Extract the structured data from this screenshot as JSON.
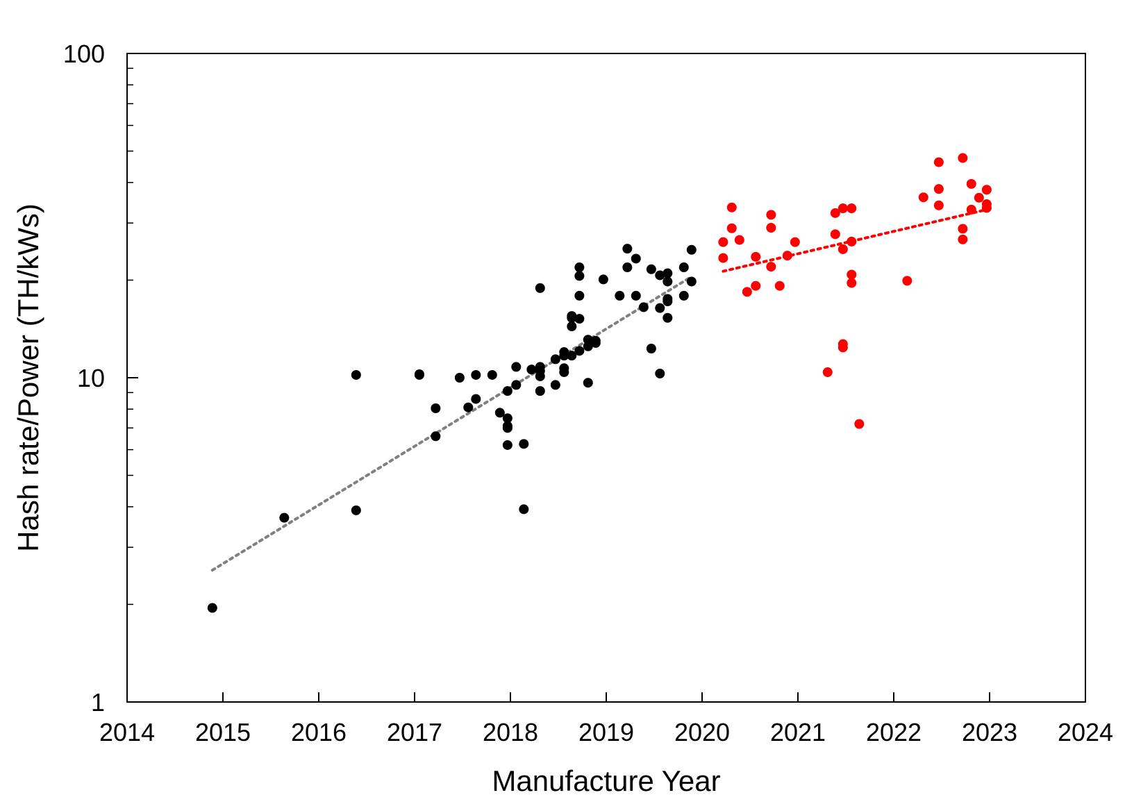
{
  "chart_data": {
    "type": "scatter",
    "xlabel": "Manufacture Year",
    "ylabel": "Hash rate/Power (TH/kWs)",
    "xlim": [
      2014,
      2024
    ],
    "ylim": [
      1,
      100
    ],
    "y_scale": "log",
    "x_ticks": [
      "2014",
      "2015",
      "2016",
      "2017",
      "2018",
      "2019",
      "2020",
      "2021",
      "2022",
      "2023",
      "2024"
    ],
    "y_ticks": [
      "1",
      "10",
      "100"
    ],
    "grid": false,
    "legend": false,
    "colors": {
      "series_pre2020": "#000000",
      "series_post2020": "#ff0000",
      "trend_pre2020": "#808080",
      "trend_post2020": "#ff0000"
    },
    "series": [
      {
        "color": "#000000",
        "points": [
          [
            2014.89,
            1.95
          ],
          [
            2015.64,
            3.7
          ],
          [
            2016.39,
            3.9
          ],
          [
            2016.39,
            10.2
          ],
          [
            2017.05,
            10.25
          ],
          [
            2017.05,
            10.2
          ],
          [
            2017.22,
            8.05
          ],
          [
            2017.22,
            6.6
          ],
          [
            2017.47,
            10.0
          ],
          [
            2017.56,
            8.1
          ],
          [
            2017.64,
            8.6
          ],
          [
            2017.64,
            10.2
          ],
          [
            2017.81,
            10.2
          ],
          [
            2017.89,
            7.8
          ],
          [
            2017.97,
            7.5
          ],
          [
            2017.97,
            7.0
          ],
          [
            2017.97,
            7.1
          ],
          [
            2017.97,
            6.2
          ],
          [
            2017.97,
            9.1
          ],
          [
            2018.06,
            9.5
          ],
          [
            2018.06,
            10.8
          ],
          [
            2018.14,
            3.93
          ],
          [
            2018.14,
            6.25
          ],
          [
            2018.22,
            10.6
          ],
          [
            2018.31,
            9.1
          ],
          [
            2018.31,
            10.1
          ],
          [
            2018.31,
            10.5
          ],
          [
            2018.31,
            10.8
          ],
          [
            2018.31,
            18.9
          ],
          [
            2018.47,
            9.5
          ],
          [
            2018.47,
            11.4
          ],
          [
            2018.56,
            10.4
          ],
          [
            2018.56,
            10.7
          ],
          [
            2018.56,
            11.7
          ],
          [
            2018.56,
            12.0
          ],
          [
            2018.64,
            11.7
          ],
          [
            2018.64,
            14.4
          ],
          [
            2018.64,
            15.3
          ],
          [
            2018.64,
            15.5
          ],
          [
            2018.72,
            12.1
          ],
          [
            2018.72,
            15.2
          ],
          [
            2018.72,
            17.9
          ],
          [
            2018.72,
            20.6
          ],
          [
            2018.72,
            21.9
          ],
          [
            2018.81,
            9.65
          ],
          [
            2018.81,
            12.5
          ],
          [
            2018.81,
            13.1
          ],
          [
            2018.89,
            12.8
          ],
          [
            2018.89,
            13.0
          ],
          [
            2018.97,
            20.1
          ],
          [
            2019.14,
            17.9
          ],
          [
            2019.22,
            21.9
          ],
          [
            2019.22,
            25.0
          ],
          [
            2019.31,
            17.9
          ],
          [
            2019.31,
            23.3
          ],
          [
            2019.39,
            16.5
          ],
          [
            2019.47,
            12.3
          ],
          [
            2019.47,
            21.6
          ],
          [
            2019.56,
            10.3
          ],
          [
            2019.56,
            16.4
          ],
          [
            2019.56,
            20.7
          ],
          [
            2019.64,
            15.3
          ],
          [
            2019.64,
            17.2
          ],
          [
            2019.64,
            17.5
          ],
          [
            2019.64,
            19.8
          ],
          [
            2019.64,
            21.0
          ],
          [
            2019.81,
            17.9
          ],
          [
            2019.81,
            21.9
          ],
          [
            2019.89,
            19.8
          ],
          [
            2019.89,
            24.8
          ]
        ]
      },
      {
        "color": "#ff0000",
        "points": [
          [
            2020.22,
            26.2
          ],
          [
            2020.22,
            23.4
          ],
          [
            2020.31,
            33.5
          ],
          [
            2020.31,
            28.9
          ],
          [
            2020.39,
            26.6
          ],
          [
            2020.47,
            18.4
          ],
          [
            2020.56,
            19.2
          ],
          [
            2020.56,
            23.6
          ],
          [
            2020.72,
            31.8
          ],
          [
            2020.72,
            29.0
          ],
          [
            2020.72,
            22.0
          ],
          [
            2020.81,
            19.2
          ],
          [
            2020.89,
            23.8
          ],
          [
            2020.97,
            26.2
          ],
          [
            2021.31,
            10.4
          ],
          [
            2021.39,
            32.2
          ],
          [
            2021.39,
            27.7
          ],
          [
            2021.47,
            33.3
          ],
          [
            2021.47,
            24.9
          ],
          [
            2021.47,
            12.7
          ],
          [
            2021.47,
            12.4
          ],
          [
            2021.56,
            33.3
          ],
          [
            2021.56,
            26.3
          ],
          [
            2021.56,
            20.8
          ],
          [
            2021.56,
            19.6
          ],
          [
            2021.64,
            7.2
          ],
          [
            2022.14,
            19.9
          ],
          [
            2022.31,
            36.0
          ],
          [
            2022.47,
            46.2
          ],
          [
            2022.47,
            38.2
          ],
          [
            2022.47,
            34.0
          ],
          [
            2022.72,
            47.6
          ],
          [
            2022.72,
            28.8
          ],
          [
            2022.72,
            26.7
          ],
          [
            2022.81,
            39.6
          ],
          [
            2022.81,
            33.0
          ],
          [
            2022.89,
            35.9
          ],
          [
            2022.97,
            38.0
          ],
          [
            2022.97,
            34.3
          ],
          [
            2022.97,
            33.4
          ]
        ]
      }
    ],
    "trendlines": [
      {
        "color": "#808080",
        "style": "dotted",
        "from": [
          2014.89,
          2.55
        ],
        "to": [
          2019.89,
          20.5
        ]
      },
      {
        "color": "#ff0000",
        "style": "dotted",
        "from": [
          2020.22,
          21.3
        ],
        "to": [
          2022.97,
          33.0
        ]
      }
    ]
  }
}
